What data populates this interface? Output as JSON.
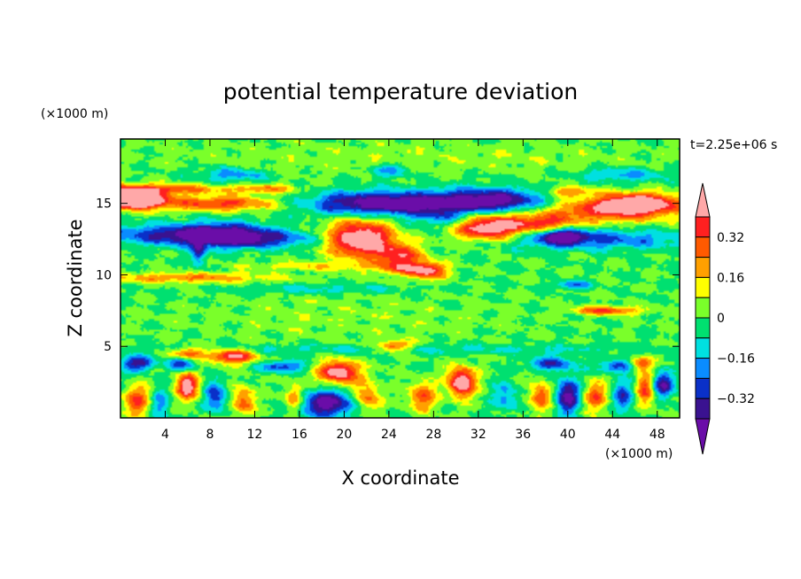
{
  "chart_data": {
    "type": "heatmap",
    "title": "potential temperature deviation",
    "xlabel": "X coordinate",
    "ylabel": "Z coordinate",
    "x_unit": "(×1000 m)",
    "y_unit": "(×1000 m)",
    "time_label": "t=2.25e+06 s",
    "xlim": [
      0,
      50
    ],
    "ylim": [
      0,
      19.5
    ],
    "x_ticks": [
      4,
      8,
      12,
      16,
      20,
      24,
      28,
      32,
      36,
      40,
      44,
      48
    ],
    "y_ticks": [
      5,
      10,
      15
    ],
    "colorbar": {
      "levels": [
        -0.4,
        -0.32,
        -0.24,
        -0.16,
        -0.08,
        0,
        0.08,
        0.16,
        0.24,
        0.32,
        0.4
      ],
      "tick_labels": [
        "0.32",
        "0.16",
        "0",
        "−0.16",
        "−0.32"
      ],
      "tick_values": [
        0.32,
        0.16,
        0,
        -0.16,
        -0.32
      ],
      "colors": [
        "#6a0da8",
        "#3a1290",
        "#0a30c8",
        "#0a8cff",
        "#00e0e0",
        "#00e070",
        "#7aff2a",
        "#ffff00",
        "#ffa000",
        "#ff5a00",
        "#ff2020",
        "#ffa8a8"
      ]
    },
    "features": [
      {
        "x": 25,
        "z": 18.2,
        "sx": 22,
        "sz": 1.0,
        "v": 0.06
      },
      {
        "x": 10,
        "z": 17.0,
        "sx": 3,
        "sz": 0.5,
        "v": -0.2
      },
      {
        "x": 24,
        "z": 17.3,
        "sx": 2,
        "sz": 0.5,
        "v": -0.18
      },
      {
        "x": 45,
        "z": 17.0,
        "sx": 4,
        "sz": 0.5,
        "v": -0.18
      },
      {
        "x": 4,
        "z": 16.0,
        "sx": 6,
        "sz": 0.35,
        "v": 0.26
      },
      {
        "x": 13,
        "z": 16.0,
        "sx": 3,
        "sz": 0.35,
        "v": 0.2
      },
      {
        "x": 1.5,
        "z": 15.2,
        "sx": 2.5,
        "sz": 0.6,
        "v": 0.5
      },
      {
        "x": 9,
        "z": 15.0,
        "sx": 5,
        "sz": 0.5,
        "v": 0.34
      },
      {
        "x": 0,
        "z": 15.5,
        "sx": 4,
        "sz": 0.7,
        "v": 0.3
      },
      {
        "x": 23,
        "z": 15.0,
        "sx": 6,
        "sz": 0.8,
        "v": -0.5
      },
      {
        "x": 33,
        "z": 15.2,
        "sx": 5,
        "sz": 0.8,
        "v": -0.5
      },
      {
        "x": 26,
        "z": 15.0,
        "sx": 2,
        "sz": 0.4,
        "v": -0.12
      },
      {
        "x": 29,
        "z": 14.0,
        "sx": 3,
        "sz": 0.8,
        "v": -0.22
      },
      {
        "x": 43,
        "z": 14.5,
        "sx": 6,
        "sz": 0.9,
        "v": 0.32
      },
      {
        "x": 46.5,
        "z": 15.0,
        "sx": 3.5,
        "sz": 0.7,
        "v": 0.5
      },
      {
        "x": 40,
        "z": 15.8,
        "sx": 2,
        "sz": 0.35,
        "v": 0.25
      },
      {
        "x": 33,
        "z": 13.3,
        "sx": 3.5,
        "sz": 0.9,
        "v": 0.55
      },
      {
        "x": 38,
        "z": 13.6,
        "sx": 2.5,
        "sz": 0.6,
        "v": 0.25
      },
      {
        "x": 21.5,
        "z": 12.5,
        "sx": 3,
        "sz": 1.3,
        "v": 0.55
      },
      {
        "x": 25,
        "z": 11.3,
        "sx": 2,
        "sz": 0.8,
        "v": 0.35
      },
      {
        "x": 27.5,
        "z": 10.3,
        "sx": 1.6,
        "sz": 0.6,
        "v": 0.42
      },
      {
        "x": 25,
        "z": 10.4,
        "sx": 2,
        "sz": 0.4,
        "v": 0.2
      },
      {
        "x": 4,
        "z": 12.8,
        "sx": 7,
        "sz": 0.7,
        "v": -0.28
      },
      {
        "x": 9,
        "z": 12.8,
        "sx": 4,
        "sz": 0.8,
        "v": -0.4
      },
      {
        "x": 13,
        "z": 12.5,
        "sx": 5,
        "sz": 0.6,
        "v": -0.24
      },
      {
        "x": 7,
        "z": 11.6,
        "sx": 0.6,
        "sz": 0.9,
        "v": -0.3
      },
      {
        "x": 42,
        "z": 12.5,
        "sx": 9,
        "sz": 0.7,
        "v": -0.26
      },
      {
        "x": 39.5,
        "z": 12.7,
        "sx": 2,
        "sz": 0.5,
        "v": -0.38
      },
      {
        "x": 6,
        "z": 9.8,
        "sx": 8,
        "sz": 0.35,
        "v": 0.24
      },
      {
        "x": 17,
        "z": 10.6,
        "sx": 6,
        "sz": 0.3,
        "v": 0.14
      },
      {
        "x": 18,
        "z": 9.0,
        "sx": 8,
        "sz": 0.35,
        "v": -0.1
      },
      {
        "x": 40.5,
        "z": 9.3,
        "sx": 1.5,
        "sz": 0.3,
        "v": -0.25
      },
      {
        "x": 43.5,
        "z": 7.5,
        "sx": 3,
        "sz": 0.3,
        "v": 0.34
      },
      {
        "x": 20,
        "z": 7.0,
        "sx": 14,
        "sz": 1.5,
        "v": 0.05
      },
      {
        "x": 25,
        "z": 4.8,
        "sx": 25,
        "sz": 0.35,
        "v": -0.1
      },
      {
        "x": 10,
        "z": 4.3,
        "sx": 2,
        "sz": 0.5,
        "v": 0.45
      },
      {
        "x": 6,
        "z": 4.5,
        "sx": 1.5,
        "sz": 0.4,
        "v": 0.35
      },
      {
        "x": 24.5,
        "z": 5.0,
        "sx": 1.5,
        "sz": 0.4,
        "v": 0.35
      },
      {
        "x": 1.5,
        "z": 3.8,
        "sx": 1.5,
        "sz": 0.5,
        "v": -0.38
      },
      {
        "x": 5.5,
        "z": 3.8,
        "sx": 1.2,
        "sz": 0.45,
        "v": -0.32
      },
      {
        "x": 14.5,
        "z": 3.6,
        "sx": 2.0,
        "sz": 0.4,
        "v": -0.3
      },
      {
        "x": 19.5,
        "z": 3.2,
        "sx": 1.8,
        "sz": 0.8,
        "v": 0.5
      },
      {
        "x": 30.5,
        "z": 2.5,
        "sx": 1.2,
        "sz": 1.0,
        "v": 0.55
      },
      {
        "x": 22,
        "z": 1.5,
        "sx": 1.2,
        "sz": 1.0,
        "v": 0.3
      },
      {
        "x": 27,
        "z": 1.5,
        "sx": 1.2,
        "sz": 1.0,
        "v": 0.3
      },
      {
        "x": 38.5,
        "z": 3.8,
        "sx": 2,
        "sz": 0.5,
        "v": -0.3
      },
      {
        "x": 44.5,
        "z": 3.6,
        "sx": 1.6,
        "sz": 0.4,
        "v": -0.3
      },
      {
        "x": 1.5,
        "z": 1.2,
        "sx": 1.2,
        "sz": 1.0,
        "v": 0.33
      },
      {
        "x": 3.5,
        "z": 1.0,
        "sx": 0.9,
        "sz": 1.1,
        "v": -0.2
      },
      {
        "x": 6,
        "z": 2.2,
        "sx": 1.0,
        "sz": 0.9,
        "v": 0.5
      },
      {
        "x": 8.5,
        "z": 1.5,
        "sx": 1.0,
        "sz": 1.0,
        "v": -0.3
      },
      {
        "x": 11,
        "z": 1.2,
        "sx": 1.0,
        "sz": 1.0,
        "v": 0.3
      },
      {
        "x": 18.5,
        "z": 1.0,
        "sx": 2.5,
        "sz": 0.9,
        "v": -0.45
      },
      {
        "x": 15.5,
        "z": 1.4,
        "sx": 0.8,
        "sz": 0.9,
        "v": 0.3
      },
      {
        "x": 34.5,
        "z": 1.5,
        "sx": 1.2,
        "sz": 1.0,
        "v": -0.18
      },
      {
        "x": 37.5,
        "z": 1.5,
        "sx": 1.0,
        "sz": 1.0,
        "v": 0.3
      },
      {
        "x": 40,
        "z": 1.5,
        "sx": 1.0,
        "sz": 1.2,
        "v": -0.45
      },
      {
        "x": 42.5,
        "z": 1.5,
        "sx": 1.0,
        "sz": 1.0,
        "v": 0.3
      },
      {
        "x": 45,
        "z": 1.5,
        "sx": 0.9,
        "sz": 1.0,
        "v": -0.3
      },
      {
        "x": 47,
        "z": 2.0,
        "sx": 0.8,
        "sz": 1.2,
        "v": 0.35
      },
      {
        "x": 48.5,
        "z": 2.3,
        "sx": 1.0,
        "sz": 0.8,
        "v": -0.4
      },
      {
        "x": 46.5,
        "z": 3.8,
        "sx": 1.0,
        "sz": 0.4,
        "v": 0.35
      }
    ]
  }
}
